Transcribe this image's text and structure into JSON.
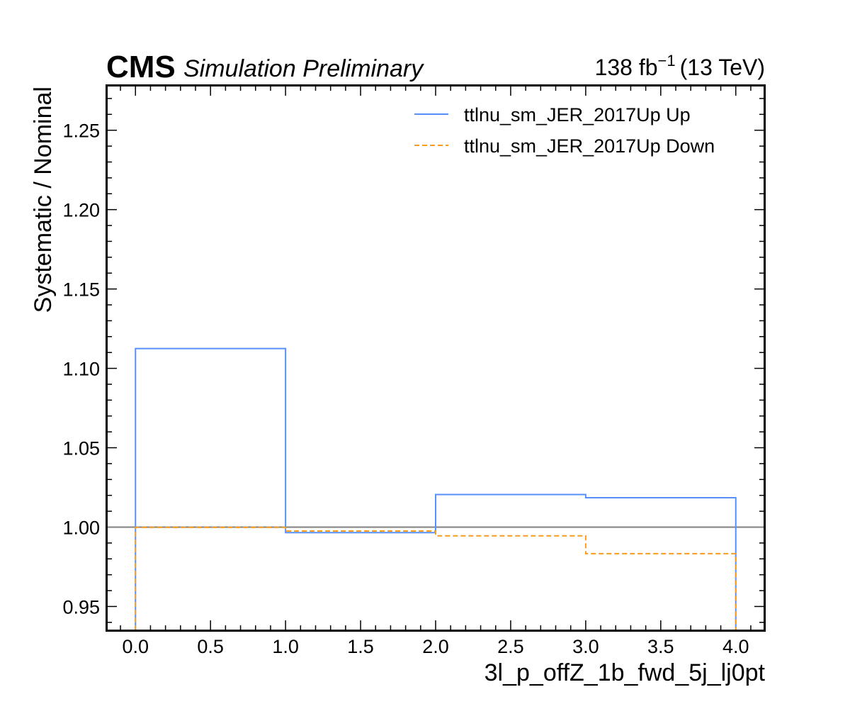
{
  "header": {
    "experiment": "CMS",
    "status": "Simulation Preliminary",
    "lumi_value": "138",
    "lumi_unit": "fb",
    "lumi_exp": "−1",
    "energy": "(13 TeV)"
  },
  "chart_data": {
    "type": "line",
    "style": "step",
    "xlabel": "3l_p_offZ_1b_fwd_5j_lj0pt",
    "ylabel": "Systematic / Nominal",
    "xlim": [
      -0.19,
      4.19
    ],
    "ylim": [
      0.935,
      1.278
    ],
    "xticks": [
      0.0,
      0.5,
      1.0,
      1.5,
      2.0,
      2.5,
      3.0,
      3.5,
      4.0
    ],
    "xtick_labels": [
      "0.0",
      "0.5",
      "1.0",
      "1.5",
      "2.0",
      "2.5",
      "3.0",
      "3.5",
      "4.0"
    ],
    "yticks": [
      0.95,
      1.0,
      1.05,
      1.1,
      1.15,
      1.2,
      1.25
    ],
    "ytick_labels": [
      "0.95",
      "1.00",
      "1.05",
      "1.10",
      "1.15",
      "1.20",
      "1.25"
    ],
    "bin_edges": [
      0,
      1,
      2,
      3,
      4
    ],
    "reference_line": 1.0,
    "legend_position": "top-right",
    "series": [
      {
        "name": "ttlnu_sm_JER_2017Up Up",
        "values": [
          1.1125,
          0.9965,
          1.0205,
          1.0185
        ],
        "color": "#5790fc",
        "dash": "solid"
      },
      {
        "name": "ttlnu_sm_JER_2017Up Down",
        "values": [
          0.9998,
          0.9975,
          0.9945,
          0.9833
        ],
        "color": "#f89c20",
        "dash": "dashed"
      }
    ],
    "colors": {
      "reference": "#808080",
      "frame": "#000000"
    }
  }
}
